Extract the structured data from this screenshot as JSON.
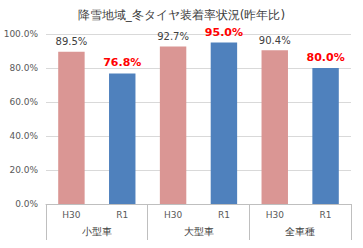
{
  "chart_data": {
    "type": "bar",
    "title": "降雪地域_冬タイヤ装着率状況(昨年比)",
    "categories": [
      "H30",
      "R1",
      "H30",
      "R1",
      "H30",
      "R1"
    ],
    "groups": [
      "小型車",
      "大型車",
      "全車種"
    ],
    "values": [
      89.5,
      76.8,
      92.7,
      95.0,
      90.4,
      80.0
    ],
    "value_labels": [
      "89.5%",
      "76.8%",
      "92.7%",
      "95.0%",
      "90.4%",
      "80.0%"
    ],
    "colors": [
      "#da9694",
      "#4f81bd",
      "#da9694",
      "#4f81bd",
      "#da9694",
      "#4f81bd"
    ],
    "ylim": [
      0,
      100
    ],
    "yticks": [
      {
        "value": 0,
        "label": "0.0%"
      },
      {
        "value": 20,
        "label": "20.0%"
      },
      {
        "value": 40,
        "label": "40.0%"
      },
      {
        "value": 60,
        "label": "60.0%"
      },
      {
        "value": 80,
        "label": "80.0%"
      },
      {
        "value": 100,
        "label": "100.0%"
      }
    ],
    "grid": true,
    "data_labels": true
  }
}
